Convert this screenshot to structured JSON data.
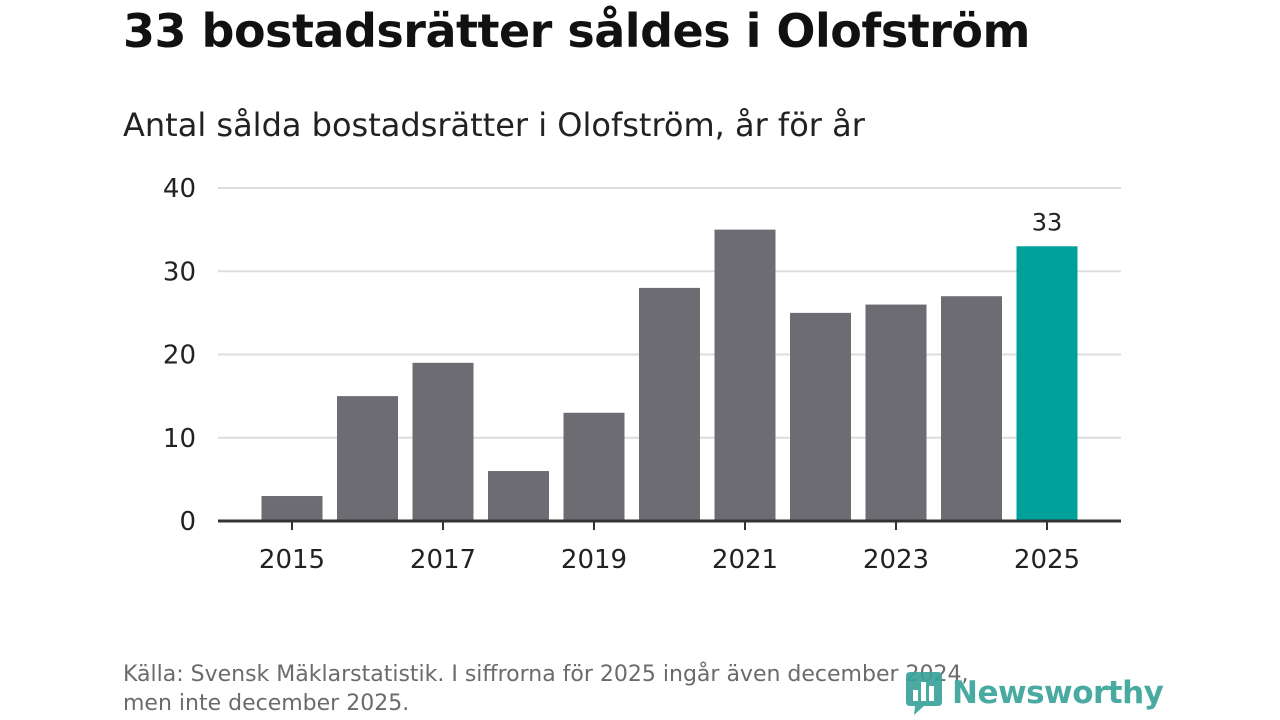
{
  "header": {
    "title": "33 bostadsrätter såldes i Olofström",
    "subtitle": "Antal sålda bostadsrätter i Olofström, år för år"
  },
  "footer": {
    "source_line1": "Källa: Svensk Mäklarstatistik. I siffrorna för 2025 ingår även december 2024,",
    "source_line2": "men inte december 2025."
  },
  "logo": {
    "text": "Newsworthy",
    "icon": "bar-chart-logo-icon"
  },
  "colors": {
    "bar": "#6d6c72",
    "highlight": "#00a19a",
    "grid": "#dddddd",
    "axis": "#333333",
    "text": "#222222",
    "logo": "#3aa39b"
  },
  "chart_data": {
    "type": "bar",
    "title": "Antal sålda bostadsrätter i Olofström, år för år",
    "xlabel": "",
    "ylabel": "",
    "categories": [
      "2015",
      "2016",
      "2017",
      "2018",
      "2019",
      "2020",
      "2021",
      "2022",
      "2023",
      "2024",
      "2025"
    ],
    "values": [
      3,
      15,
      19,
      6,
      13,
      28,
      35,
      25,
      26,
      27,
      33
    ],
    "x_tick_labels": [
      "2015",
      "2017",
      "2019",
      "2021",
      "2023",
      "2025"
    ],
    "y_ticks": [
      0,
      10,
      20,
      30,
      40
    ],
    "ylim": [
      0,
      40
    ],
    "grid": true,
    "highlight_category": "2025",
    "data_labels": [
      {
        "category": "2025",
        "text": "33"
      }
    ]
  }
}
